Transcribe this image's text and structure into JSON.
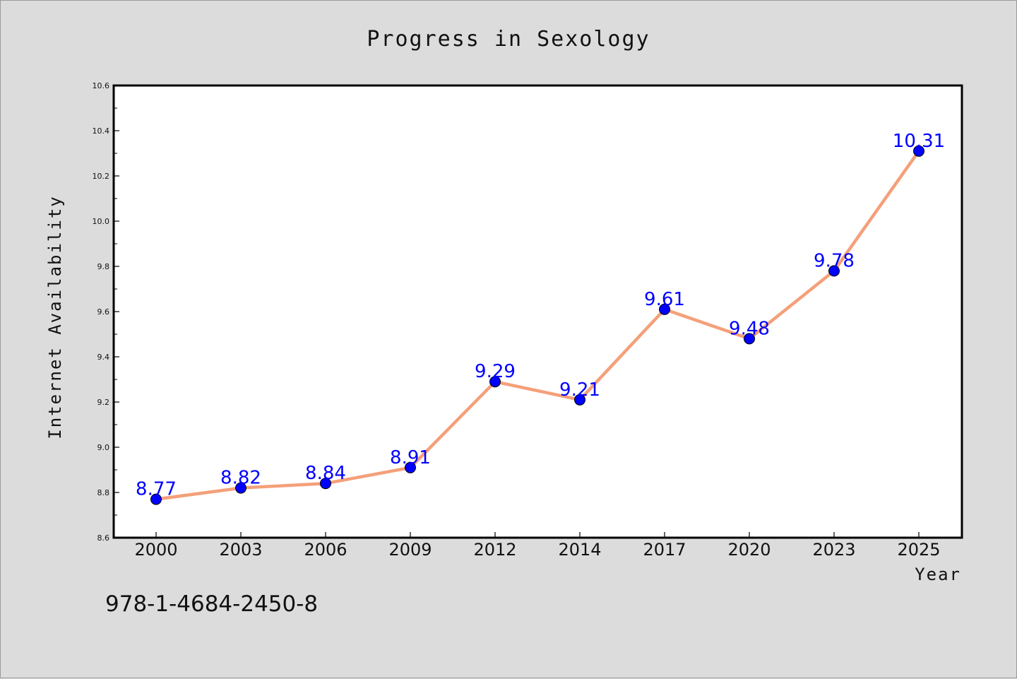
{
  "chart_data": {
    "type": "line",
    "title": "Progress in Sexology",
    "xlabel": "Year",
    "ylabel": "Internet Availability",
    "categories": [
      "2000",
      "2003",
      "2006",
      "2009",
      "2012",
      "2014",
      "2017",
      "2020",
      "2023",
      "2025"
    ],
    "values": [
      8.77,
      8.82,
      8.84,
      8.91,
      9.29,
      9.21,
      9.61,
      9.48,
      9.78,
      10.31
    ],
    "data_labels": [
      "8.77",
      "8.82",
      "8.84",
      "8.91",
      "9.29",
      "9.21",
      "9.61",
      "9.48",
      "9.78",
      "10.31"
    ],
    "ylim": [
      8.6,
      10.6
    ],
    "yticks": [
      "8.6",
      "8.8",
      "9.0",
      "9.2",
      "9.4",
      "9.6",
      "9.8",
      "10.0",
      "10.2",
      "10.4",
      "10.6"
    ],
    "grid": false,
    "line_color": "#f4a07a",
    "marker_color": "#0000ff",
    "label_color": "#0000ff"
  },
  "annotation": "978-1-4684-2450-8"
}
